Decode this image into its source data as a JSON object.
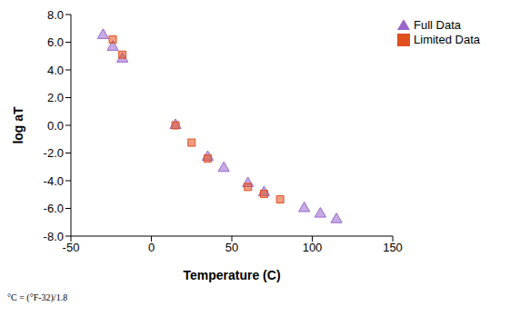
{
  "chart_data": {
    "type": "scatter",
    "x_label": "Temperature (C)",
    "y_label": "log aT",
    "annotation": "°C = (°F-32)/1.8",
    "xlim": [
      -50,
      150
    ],
    "xticks": [
      -50,
      0,
      50,
      100,
      150
    ],
    "ylim": [
      -8,
      8
    ],
    "yticks": [
      {
        "value": -8,
        "label": "-8.0"
      },
      {
        "value": -6,
        "label": "-6.0"
      },
      {
        "value": -4,
        "label": "-4.0"
      },
      {
        "value": -2,
        "label": "-2.0"
      },
      {
        "value": 0,
        "label": "0.0"
      },
      {
        "value": 2,
        "label": "2.0"
      },
      {
        "value": 4,
        "label": "4.0"
      },
      {
        "value": 6,
        "label": "6.0"
      },
      {
        "value": 8,
        "label": "8.0"
      }
    ],
    "grid": false,
    "legend": "top-right",
    "series": [
      {
        "name": "Full Data",
        "color": "#9966cc",
        "marker": "triangle",
        "x": [
          -30,
          -24,
          -18,
          15,
          35,
          45,
          60,
          70,
          95,
          105,
          115
        ],
        "values": [
          6.5,
          5.65,
          4.8,
          0.0,
          -2.3,
          -3.1,
          -4.2,
          -4.85,
          -6.0,
          -6.4,
          -6.8
        ]
      },
      {
        "name": "Limited Data",
        "color": "#e0501e",
        "marker": "square",
        "x": [
          -24,
          -18,
          15,
          25,
          35,
          60,
          70,
          80
        ],
        "values": [
          6.2,
          5.1,
          0.0,
          -1.25,
          -2.4,
          -4.45,
          -4.95,
          -5.35
        ]
      }
    ]
  }
}
